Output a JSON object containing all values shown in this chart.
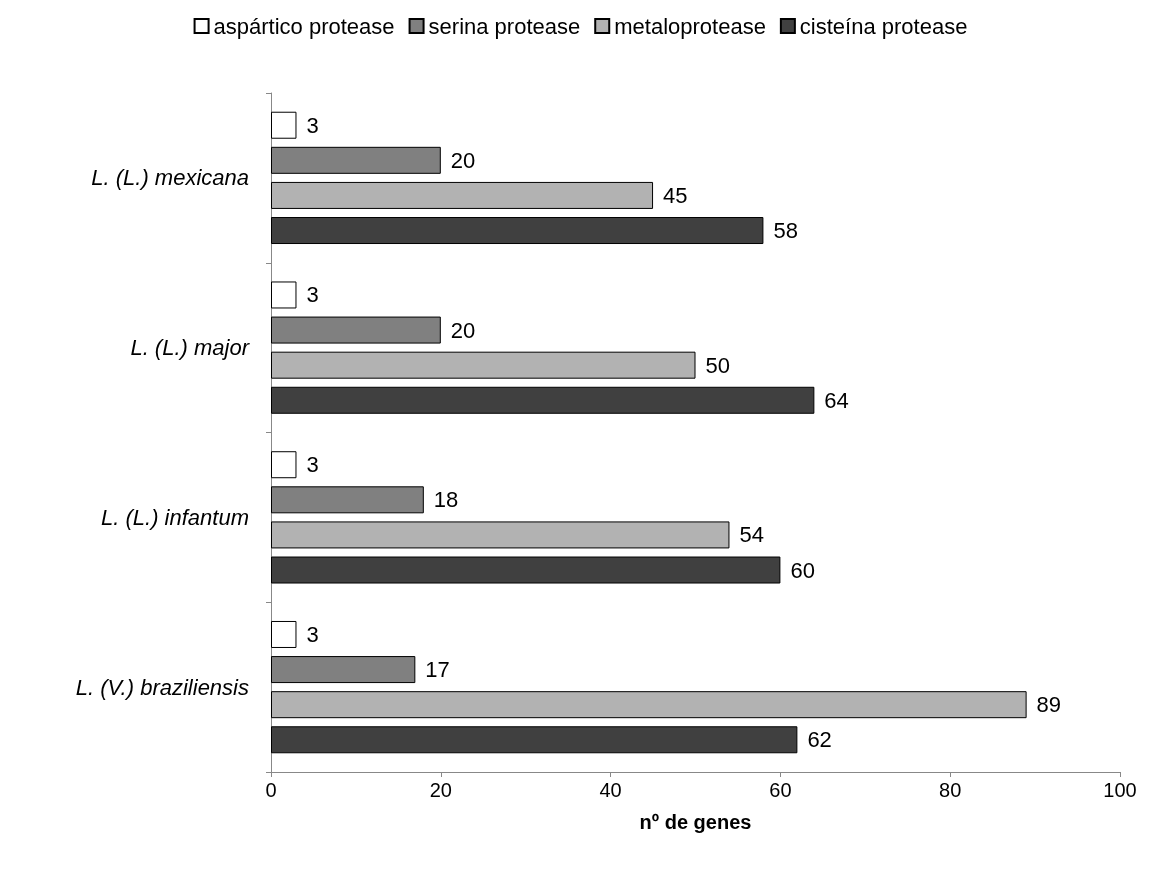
{
  "chart_data": {
    "type": "bar",
    "orientation": "horizontal",
    "categories": [
      "L. (L.) mexicana",
      "L. (L.) major",
      "L. (L.) infantum",
      "L. (V.) braziliensis"
    ],
    "series": [
      {
        "name": "aspártico protease",
        "color": "#ffffff",
        "values": [
          3,
          3,
          3,
          3
        ]
      },
      {
        "name": "serina protease",
        "color": "#808080",
        "values": [
          20,
          20,
          18,
          17
        ]
      },
      {
        "name": "metaloprotease",
        "color": "#b2b2b2",
        "values": [
          45,
          50,
          54,
          89
        ]
      },
      {
        "name": "cisteína protease",
        "color": "#404040",
        "values": [
          58,
          64,
          60,
          62
        ]
      }
    ],
    "xlabel": "nº de genes",
    "xlim": [
      0,
      100
    ],
    "xticks": [
      0,
      20,
      40,
      60,
      80,
      100
    ],
    "grid": false,
    "legend": "top",
    "data_labels": true
  }
}
